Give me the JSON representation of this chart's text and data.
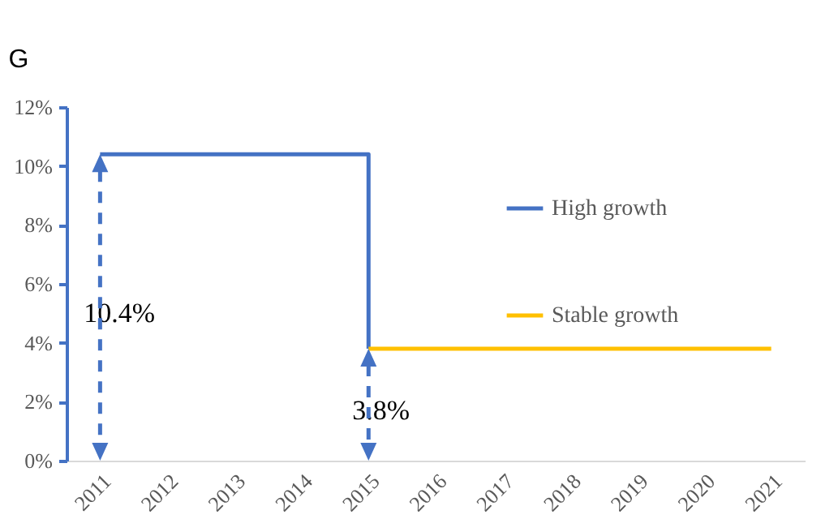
{
  "chart_data": {
    "type": "line",
    "ylabel": "G",
    "categories": [
      "2011",
      "2012",
      "2013",
      "2014",
      "2015",
      "2016",
      "2017",
      "2018",
      "2019",
      "2020",
      "2021"
    ],
    "series": [
      {
        "name": "High growth",
        "type": "step",
        "color": "#4472c4",
        "values": [
          10.4,
          10.4,
          10.4,
          10.4,
          3.8,
          null,
          null,
          null,
          null,
          null,
          null
        ]
      },
      {
        "name": "Stable growth",
        "type": "line",
        "color": "#ffc000",
        "values": [
          null,
          null,
          null,
          null,
          3.8,
          3.8,
          3.8,
          3.8,
          3.8,
          3.8,
          3.8
        ]
      }
    ],
    "ylim": [
      0,
      12
    ],
    "yticks": [
      {
        "value": 0,
        "label": "0%"
      },
      {
        "value": 2,
        "label": "2%"
      },
      {
        "value": 4,
        "label": "4%"
      },
      {
        "value": 6,
        "label": "6%"
      },
      {
        "value": 8,
        "label": "8%"
      },
      {
        "value": 10,
        "label": "10%"
      },
      {
        "value": 12,
        "label": "12%"
      }
    ],
    "annotations": [
      "10.4%",
      "3.8%"
    ],
    "grid": false,
    "legend": "top right"
  }
}
